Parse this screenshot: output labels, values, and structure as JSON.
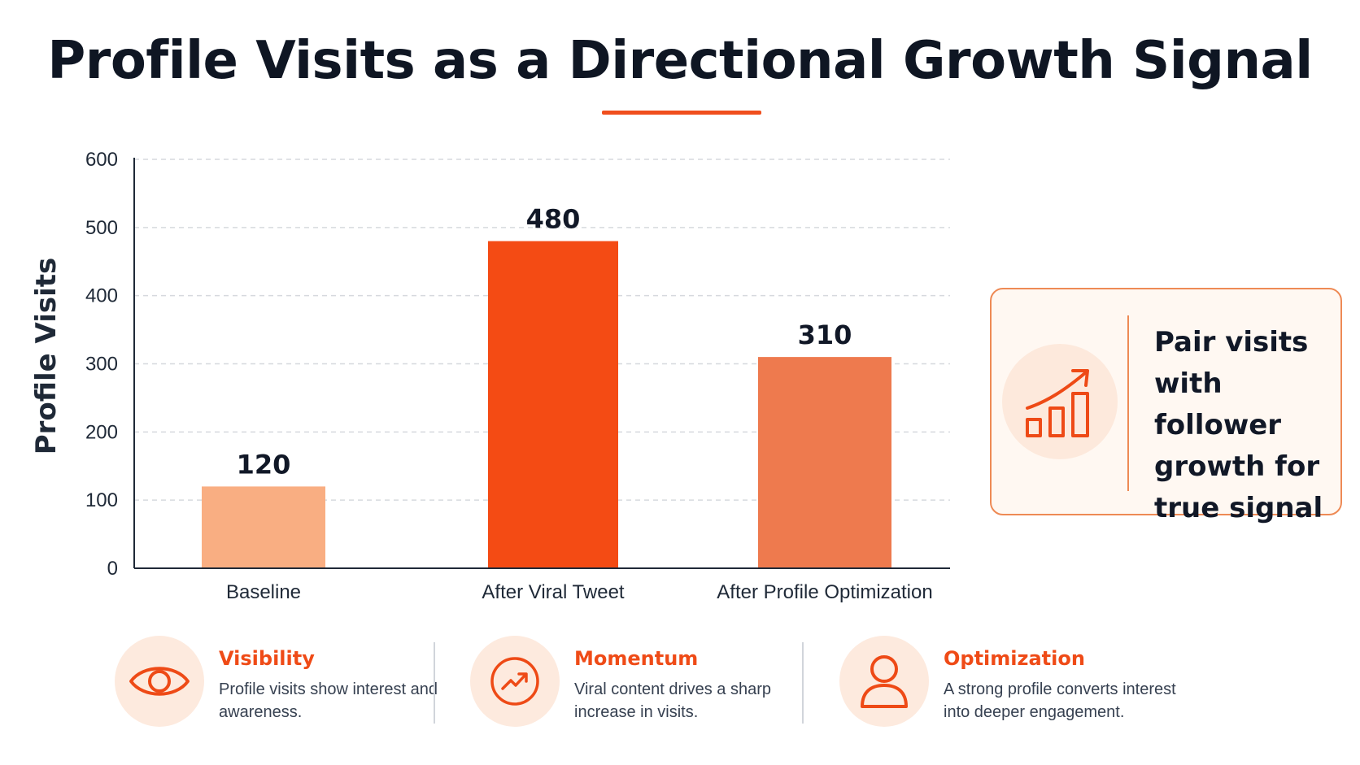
{
  "title": "Profile Visits as a Directional Growth Signal",
  "colors": {
    "accent": "#f04e1d",
    "bar_baseline": "#f9ae82",
    "bar_viral": "#f44b14",
    "bar_optimization": "#ee7a4e"
  },
  "chart_data": {
    "type": "bar",
    "categories": [
      "Baseline",
      "After Viral Tweet",
      "After Profile Optimization"
    ],
    "values": [
      120,
      480,
      310
    ],
    "data_labels": [
      "120",
      "480",
      "310"
    ],
    "title": "Profile Visits as a Directional Growth Signal",
    "xlabel": "",
    "ylabel": "Profile Visits",
    "ylim": [
      0,
      600
    ],
    "yticks": [
      0,
      100,
      200,
      300,
      400,
      500,
      600
    ],
    "grid": true,
    "legend": "none"
  },
  "callout": {
    "icon": "chart-growth-icon",
    "text": "Pair visits with follower growth for true signal"
  },
  "features": [
    {
      "icon": "eye-icon",
      "title": "Visibility",
      "description": "Profile visits show interest and awareness."
    },
    {
      "icon": "trending-up-icon",
      "title": "Momentum",
      "description": "Viral content drives a sharp increase in visits."
    },
    {
      "icon": "user-icon",
      "title": "Optimization",
      "description": "A strong profile converts interest into deeper engagement."
    }
  ]
}
